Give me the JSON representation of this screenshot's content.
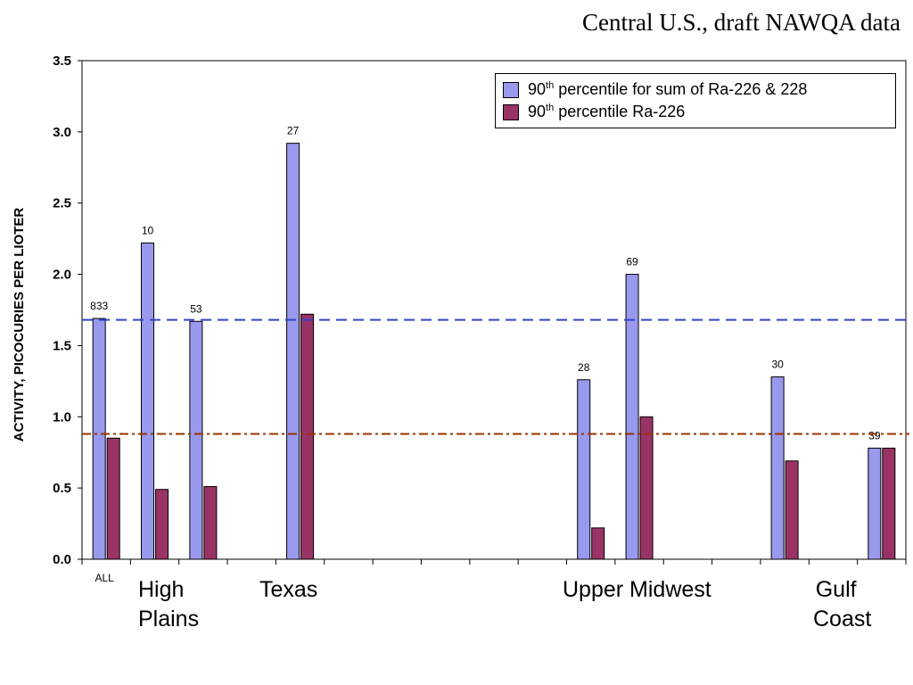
{
  "chart_data": {
    "type": "bar",
    "title": "Central U.S., draft NAWQA data",
    "ylabel": "ACTIVITY, PICOCURIES PER LIOTER",
    "ylim": [
      0,
      3.5
    ],
    "y_ticks": [
      "0.0",
      "0.5",
      "1.0",
      "1.5",
      "2.0",
      "2.5",
      "3.0",
      "3.5"
    ],
    "grid": false,
    "legend_position": "top-right",
    "categories": [
      "ALL",
      "",
      "",
      "",
      "",
      "",
      "",
      "",
      "",
      "",
      "",
      "",
      "",
      "",
      "",
      "",
      ""
    ],
    "series": [
      {
        "name": "90th percentile for sum of Ra-226 & 228",
        "name_base": "90",
        "name_sup": "th",
        "name_rest": " percentile for sum of Ra-226 & 228",
        "color": "#9999ee",
        "values": [
          1.69,
          2.22,
          1.67,
          null,
          2.92,
          null,
          null,
          null,
          null,
          null,
          1.26,
          2.0,
          null,
          null,
          1.28,
          null,
          0.78
        ]
      },
      {
        "name": "90th percentile Ra-226",
        "name_base": "90",
        "name_sup": "th",
        "name_rest": " percentile Ra-226",
        "color": "#993366",
        "values": [
          0.85,
          0.49,
          0.51,
          null,
          1.72,
          null,
          null,
          null,
          null,
          null,
          0.22,
          1.0,
          null,
          null,
          0.69,
          null,
          0.78
        ]
      }
    ],
    "sample_counts": [
      "833",
      "10",
      "53",
      null,
      "27",
      null,
      null,
      null,
      null,
      null,
      "28",
      "69",
      null,
      null,
      "30",
      null,
      "39"
    ],
    "reference_lines": [
      {
        "y": 1.68,
        "style": "dashed",
        "color": "#3344cc"
      },
      {
        "y": 0.88,
        "style": "dash-dot",
        "color": "#993300"
      }
    ],
    "region_labels": [
      {
        "lines": [
          "High",
          "Plains"
        ]
      },
      {
        "lines": [
          "Texas"
        ]
      },
      {
        "lines": [
          "Upper Midwest"
        ]
      },
      {
        "lines": [
          "Gulf",
          "Coast"
        ]
      }
    ]
  }
}
